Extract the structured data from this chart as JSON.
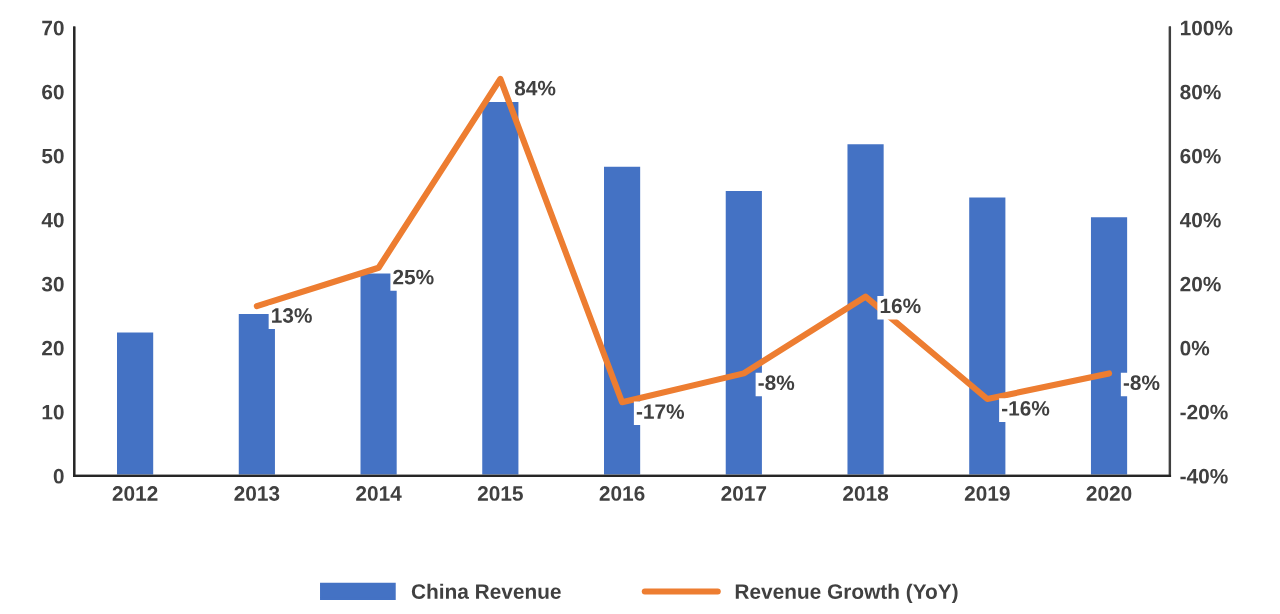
{
  "chart_data": {
    "type": "bar",
    "categories": [
      "2012",
      "2013",
      "2014",
      "2015",
      "2016",
      "2017",
      "2018",
      "2019",
      "2020"
    ],
    "series": [
      {
        "name": "China Revenue",
        "color": "#4472c4",
        "values": [
          22.6,
          25.5,
          31.8,
          58.6,
          48.5,
          44.7,
          52.0,
          43.7,
          40.6
        ]
      },
      {
        "name": "Revenue Growth (YoY)",
        "type": "line",
        "axis": "y2",
        "color": "#ed7d31",
        "marker": "none",
        "data_labels": true,
        "value_labels": [
          null,
          "13%",
          "25%",
          "84%",
          "-17%",
          "-8%",
          "16%",
          "-16%",
          "-8%"
        ],
        "values": [
          null,
          13,
          25,
          84,
          -17,
          -8,
          16,
          -16,
          -8
        ]
      }
    ],
    "ylim": [
      0,
      70
    ],
    "yticks": [
      0,
      10,
      20,
      30,
      40,
      50,
      60,
      70
    ],
    "y2lim": [
      -40,
      100
    ],
    "y2ticks": [
      {
        "value": -40,
        "label": "-40%"
      },
      {
        "value": -20,
        "label": "-20%"
      },
      {
        "value": 0,
        "label": "0%"
      },
      {
        "value": 20,
        "label": "20%"
      },
      {
        "value": 40,
        "label": "40%"
      },
      {
        "value": 60,
        "label": "60%"
      },
      {
        "value": 80,
        "label": "80%"
      },
      {
        "value": 100,
        "label": "100%"
      }
    ],
    "grid": false,
    "legend": "bottom"
  }
}
